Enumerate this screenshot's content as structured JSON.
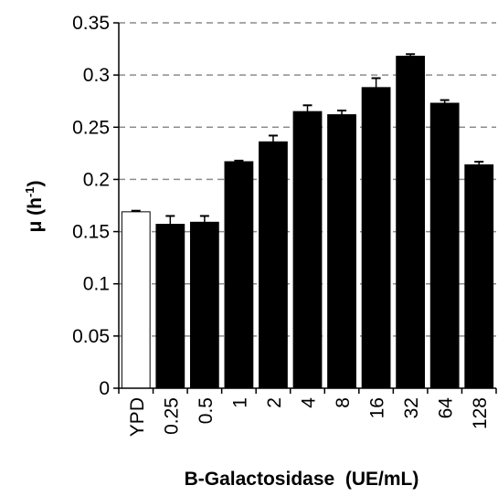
{
  "chart_data": {
    "type": "bar",
    "xlabel": "B-Galactosidase  (UE/mL)",
    "ylabel": "μ (h",
    "ylabel_sup": "-1",
    "ylabel_close": ")",
    "ylim": [
      0,
      0.35
    ],
    "yticks": [
      0,
      0.05,
      0.1,
      0.15,
      0.2,
      0.25,
      0.3,
      0.35
    ],
    "ytick_labels": [
      "0",
      "0.05",
      "0.1",
      "0.15",
      "0.2",
      "0.25",
      "0.3",
      "0.35"
    ],
    "grid": "horizontal dashed",
    "categories": [
      "YPD",
      "0.25",
      "0.5",
      "1",
      "2",
      "4",
      "8",
      "16",
      "32",
      "64",
      "128"
    ],
    "values": [
      0.169,
      0.157,
      0.159,
      0.217,
      0.236,
      0.265,
      0.262,
      0.288,
      0.318,
      0.273,
      0.214
    ],
    "errors": [
      0.001,
      0.008,
      0.006,
      0.001,
      0.006,
      0.006,
      0.004,
      0.009,
      0.002,
      0.003,
      0.003
    ],
    "bar_colors": [
      "#ffffff",
      "#000000",
      "#000000",
      "#000000",
      "#000000",
      "#000000",
      "#000000",
      "#000000",
      "#000000",
      "#000000",
      "#000000"
    ]
  }
}
